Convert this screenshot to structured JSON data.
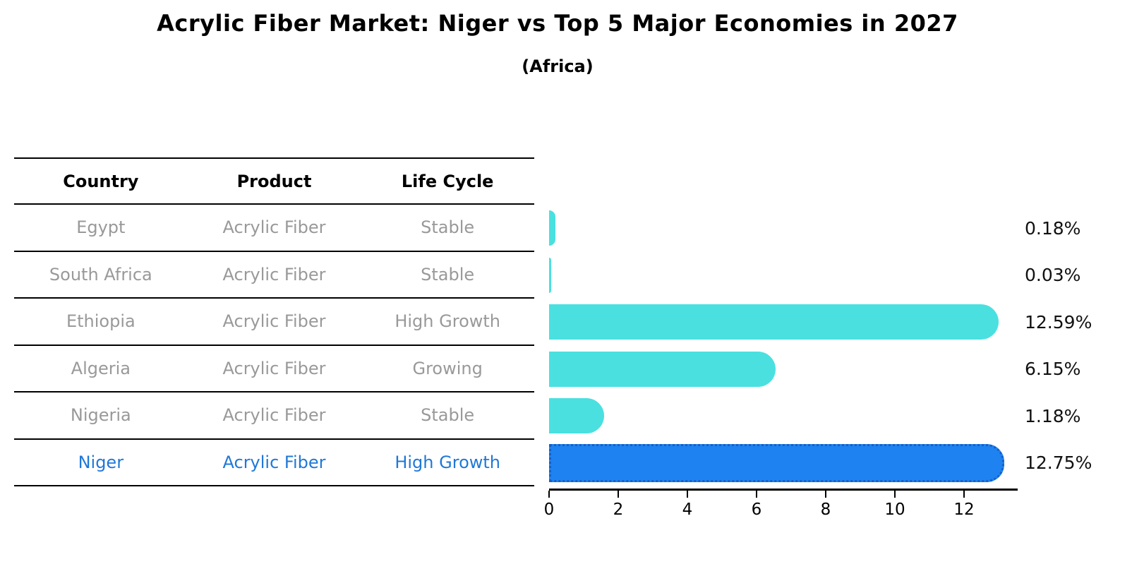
{
  "header": {
    "title": "Acrylic Fiber Market: Niger vs Top 5 Major Economies in 2027",
    "subtitle": "(Africa)"
  },
  "table": {
    "columns": [
      "Country",
      "Product",
      "Life Cycle"
    ]
  },
  "chart_data": {
    "type": "bar",
    "orientation": "horizontal",
    "title": "Acrylic Fiber Market: Niger vs Top 5 Major Economies in 2027",
    "subtitle": "(Africa)",
    "xlabel": "",
    "ylabel": "",
    "unit": "%",
    "xticks": [
      0,
      2,
      4,
      6,
      8,
      10,
      12
    ],
    "xlim": [
      0,
      13.3
    ],
    "grid": false,
    "legend": null,
    "categories": [
      "Egypt",
      "South Africa",
      "Ethiopia",
      "Algeria",
      "Nigeria",
      "Niger"
    ],
    "values": [
      0.18,
      0.03,
      12.59,
      6.15,
      1.18,
      12.75
    ],
    "rows": [
      {
        "country": "Egypt",
        "product": "Acrylic Fiber",
        "life_cycle": "Stable",
        "value": 0.18,
        "value_label": "0.18%",
        "highlight": false
      },
      {
        "country": "South Africa",
        "product": "Acrylic Fiber",
        "life_cycle": "Stable",
        "value": 0.03,
        "value_label": "0.03%",
        "highlight": false
      },
      {
        "country": "Ethiopia",
        "product": "Acrylic Fiber",
        "life_cycle": "High Growth",
        "value": 12.59,
        "value_label": "12.59%",
        "highlight": false
      },
      {
        "country": "Algeria",
        "product": "Acrylic Fiber",
        "life_cycle": "Growing",
        "value": 6.15,
        "value_label": "6.15%",
        "highlight": false
      },
      {
        "country": "Nigeria",
        "product": "Acrylic Fiber",
        "life_cycle": "Stable",
        "value": 1.18,
        "value_label": "1.18%",
        "highlight": false
      },
      {
        "country": "Niger",
        "product": "Acrylic Fiber",
        "life_cycle": "High Growth",
        "value": 12.75,
        "value_label": "12.75%",
        "highlight": true
      }
    ],
    "colors": {
      "bar": "#4ae0e0",
      "highlight_bar": "#1e82f0",
      "highlight_border": "#1460c8",
      "highlight_text": "#1f78d8",
      "row_text": "#999999",
      "header_text": "#000000",
      "axis": "#000000",
      "value_text": "#111111"
    }
  }
}
